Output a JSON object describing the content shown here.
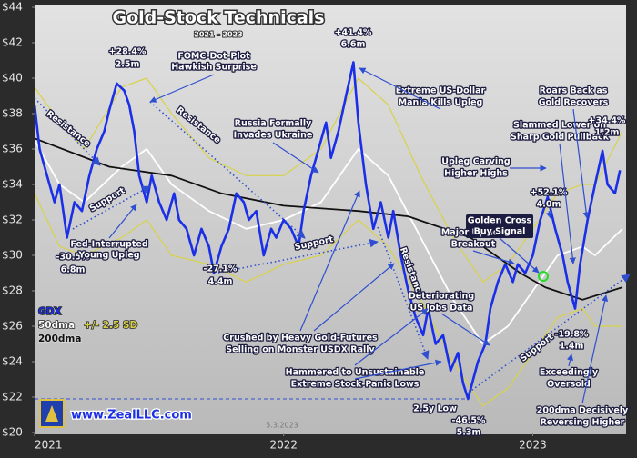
{
  "chart_data": {
    "type": "line",
    "title": "Gold-Stock Technicals",
    "subtitle": "2021 - 2023",
    "date": "5.3.2023",
    "website": "www.ZealLLC.com",
    "xlim": [
      2021,
      2023.36
    ],
    "xticks": [
      2021,
      2022,
      2023
    ],
    "ylim": [
      20,
      44
    ],
    "yticks": [
      {
        "value": 20,
        "label": "$20"
      },
      {
        "value": 22,
        "label": "$22"
      },
      {
        "value": 24,
        "label": "$24"
      },
      {
        "value": 26,
        "label": "$26"
      },
      {
        "value": 28,
        "label": "$28"
      },
      {
        "value": 30,
        "label": "$30"
      },
      {
        "value": 32,
        "label": "$32"
      },
      {
        "value": 34,
        "label": "$34"
      },
      {
        "value": 36,
        "label": "$36"
      },
      {
        "value": 38,
        "label": "$38"
      },
      {
        "value": 40,
        "label": "$40"
      },
      {
        "value": 42,
        "label": "$42"
      },
      {
        "value": 44,
        "label": "$44"
      }
    ],
    "grid": false,
    "series": [
      {
        "name": "+/- 2.5 SD",
        "kind": "band",
        "color": "#d8d24a",
        "x": [
          2021.0,
          2021.1,
          2021.2,
          2021.35,
          2021.45,
          2021.55,
          2021.7,
          2021.85,
          2022.0,
          2022.15,
          2022.3,
          2022.42,
          2022.55,
          2022.68,
          2022.8,
          2022.9,
          2023.0,
          2023.1,
          2023.2,
          2023.25,
          2023.36
        ],
        "upper": [
          39.5,
          37.5,
          36,
          39.5,
          40,
          38,
          35.5,
          34.5,
          34.5,
          36,
          40,
          38.5,
          34.5,
          31,
          28.5,
          29.5,
          31.5,
          33.5,
          34,
          34,
          37
        ],
        "lower": [
          33.5,
          30.5,
          30,
          31,
          32,
          30,
          29.5,
          28.5,
          29.5,
          30,
          32,
          30.5,
          27.5,
          24,
          21.5,
          22.5,
          24.5,
          26.5,
          27,
          26,
          26
        ]
      },
      {
        "name": "50dma",
        "color": "#ffffff",
        "x": [
          2021.0,
          2021.1,
          2021.2,
          2021.35,
          2021.45,
          2021.55,
          2021.7,
          2021.85,
          2022.0,
          2022.15,
          2022.3,
          2022.42,
          2022.55,
          2022.68,
          2022.8,
          2022.9,
          2023.0,
          2023.1,
          2023.2,
          2023.25,
          2023.36
        ],
        "values": [
          36.5,
          34,
          33,
          35,
          36,
          34,
          32.5,
          31.5,
          32,
          33,
          36,
          34.5,
          31,
          27.5,
          25,
          26,
          28,
          30,
          30.5,
          30,
          31.5
        ]
      },
      {
        "name": "200dma",
        "color": "#111111",
        "x": [
          2021.0,
          2021.3,
          2021.55,
          2021.75,
          2022.0,
          2022.3,
          2022.5,
          2022.75,
          2022.95,
          2023.05,
          2023.2,
          2023.36
        ],
        "values": [
          36.6,
          35,
          34.5,
          33.5,
          32.8,
          32.5,
          32.2,
          31,
          29,
          28.2,
          27.5,
          28.2
        ]
      },
      {
        "name": "GDX",
        "color": "#1a2fe6",
        "x": [
          2021.0,
          2021.02,
          2021.05,
          2021.08,
          2021.1,
          2021.13,
          2021.16,
          2021.19,
          2021.22,
          2021.25,
          2021.28,
          2021.3,
          2021.33,
          2021.36,
          2021.38,
          2021.4,
          2021.42,
          2021.45,
          2021.47,
          2021.5,
          2021.53,
          2021.56,
          2021.58,
          2021.61,
          2021.64,
          2021.67,
          2021.7,
          2021.72,
          2021.75,
          2021.78,
          2021.81,
          2021.84,
          2021.86,
          2021.89,
          2021.92,
          2021.95,
          2021.97,
          2022.0,
          2022.03,
          2022.06,
          2022.08,
          2022.11,
          2022.14,
          2022.17,
          2022.19,
          2022.22,
          2022.25,
          2022.28,
          2022.3,
          2022.33,
          2022.36,
          2022.39,
          2022.42,
          2022.44,
          2022.47,
          2022.5,
          2022.53,
          2022.56,
          2022.58,
          2022.61,
          2022.64,
          2022.67,
          2022.7,
          2022.72,
          2022.74,
          2022.78,
          2022.81,
          2022.83,
          2022.86,
          2022.89,
          2022.92,
          2022.94,
          2022.97,
          2023.0,
          2023.03,
          2023.06,
          2023.09,
          2023.12,
          2023.14,
          2023.17,
          2023.19,
          2023.22,
          2023.25,
          2023.28,
          2023.3,
          2023.33,
          2023.35
        ],
        "values": [
          38.5,
          36,
          34.5,
          33,
          34,
          31,
          33,
          32.5,
          34.5,
          36,
          37,
          38.2,
          39.7,
          39.3,
          38.5,
          37,
          34.5,
          33,
          34.5,
          33,
          32,
          33.5,
          32,
          31.5,
          30,
          31.5,
          30.5,
          29,
          30.5,
          31.5,
          33.5,
          33,
          32,
          32.5,
          30,
          31.5,
          31,
          32,
          31.5,
          30.5,
          32.5,
          34.5,
          36,
          37.5,
          35.5,
          37,
          39,
          40.9,
          37.5,
          34,
          31.5,
          33,
          31,
          32.5,
          30,
          28,
          26.5,
          25.5,
          27,
          25,
          25.5,
          23.5,
          24.5,
          22.8,
          21.9,
          24,
          25,
          27,
          28.5,
          29.5,
          28.5,
          29.5,
          29,
          30,
          32,
          33.3,
          31.5,
          30,
          28.5,
          27,
          29.5,
          32,
          34,
          35.9,
          34,
          33.5,
          34.8
        ]
      }
    ],
    "annotations": [
      "+28.4%",
      "2.5m",
      "FOMC-Dot-Plot",
      "Hawkish Surprise",
      "Resistance",
      "Resistance",
      "Support",
      "-30.5%",
      "6.8m",
      "Fed-Interrupted",
      "Young Upleg",
      "-27.1%",
      "4.4m",
      "Russia Formally",
      "Invades Ukraine",
      "+41.4%",
      "6.6m",
      "Extreme US-Dollar",
      "Mania Kills Upleg",
      "Support",
      "Resistance",
      "Crushed by Heavy Gold-Futures",
      "Selling on Monster USDX Rally",
      "Hammered to Unsustainable",
      "Extreme Stock-Panic Lows",
      "Deteriorating",
      "US Jobs Data",
      "Major Upside",
      "Breakout",
      "Golden Cross",
      "Buy Signal",
      "Upleg Carving",
      "Higher Highs",
      "+52.1%",
      "4.0m",
      "Slammed Lower on",
      "Sharp Gold Pullback",
      "Roars Back as",
      "Gold Recovers",
      "+34.4%",
      "1.2m",
      "-19.8%",
      "1.4m",
      "Support",
      "Exceedingly",
      "Oversold",
      "200dma Decisively",
      "Reversing Higher",
      "2.5y Low",
      "-46.5%",
      "5.3m"
    ]
  }
}
